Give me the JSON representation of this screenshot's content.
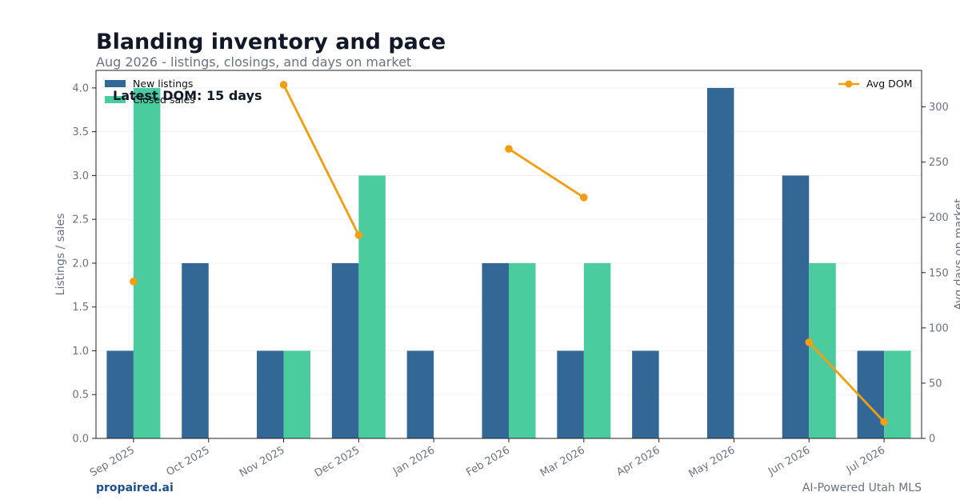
{
  "chart_data": {
    "type": "bar",
    "title": "Blanding inventory and pace",
    "subtitle": "Aug 2026 - listings, closings, and days on market",
    "categories": [
      "Sep 2025",
      "Oct 2025",
      "Nov 2025",
      "Dec 2025",
      "Jan 2026",
      "Feb 2026",
      "Mar 2026",
      "Apr 2026",
      "May 2026",
      "Jun 2026",
      "Jul 2026"
    ],
    "series": [
      {
        "name": "New listings",
        "type": "bar",
        "axis": "left",
        "color": "#336796",
        "values": [
          1,
          2,
          1,
          2,
          1,
          2,
          1,
          1,
          4,
          3,
          1
        ]
      },
      {
        "name": "Closed sales",
        "type": "bar",
        "axis": "left",
        "color": "#4ACC9F",
        "values": [
          4,
          0,
          1,
          3,
          0,
          2,
          2,
          0,
          0,
          2,
          1
        ]
      },
      {
        "name": "Avg DOM",
        "type": "line",
        "axis": "right",
        "color": "#F29E12",
        "values": [
          142,
          null,
          320,
          184,
          null,
          262,
          218,
          null,
          null,
          87,
          15
        ]
      }
    ],
    "ylabel": "Listings / sales",
    "ylabel_right": "Avg days on market",
    "ylim": [
      0,
      4.2
    ],
    "yticks": [
      0.0,
      0.5,
      1.0,
      1.5,
      2.0,
      2.5,
      3.0,
      3.5,
      4.0
    ],
    "ylim_right": [
      0,
      333
    ],
    "yticks_right": [
      0,
      50,
      100,
      150,
      200,
      250,
      300
    ],
    "grid": true,
    "legend_left": "top-left",
    "legend_right": "top-right",
    "annotation": "Latest DOM: 15 days"
  },
  "footer": {
    "brand": "propaired.ai",
    "tagline": "AI-Powered Utah MLS"
  }
}
